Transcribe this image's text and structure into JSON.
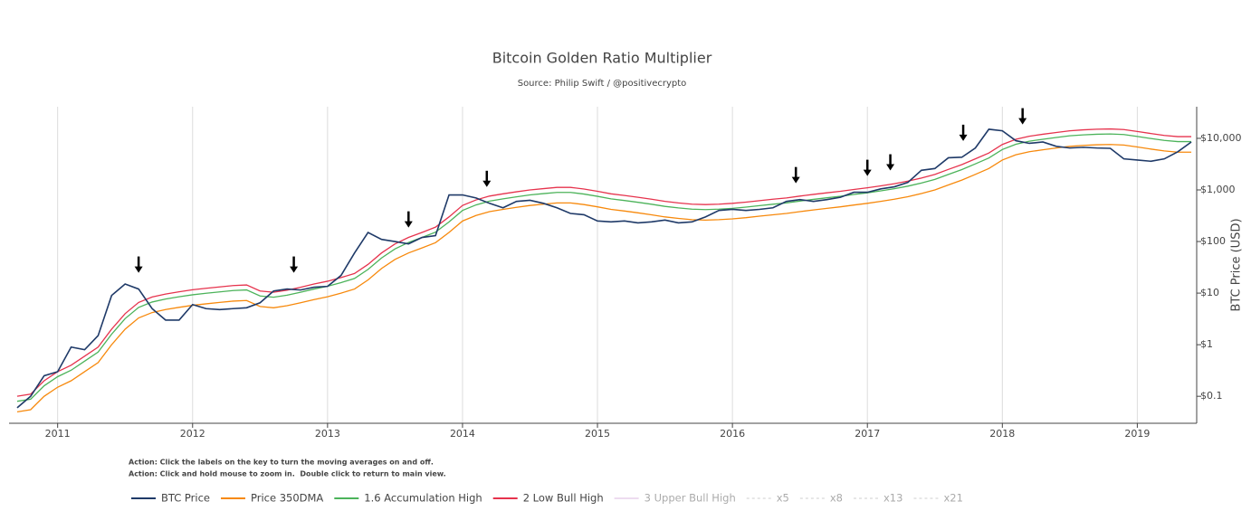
{
  "chart_data": {
    "type": "line",
    "title": "Bitcoin Golden Ratio Multiplier",
    "subtitle": "Source: Philip Swift / @positivecrypto",
    "y_label": "BTC Price (USD)",
    "log_y": true,
    "grid": true,
    "xlim": [
      2010.64,
      2019.44
    ],
    "xticks": [
      2011,
      2012,
      2013,
      2014,
      2015,
      2016,
      2017,
      2018,
      2019
    ],
    "ylim": [
      0.03,
      41000
    ],
    "yticks": [
      {
        "value": 0.1,
        "label": "$0.1"
      },
      {
        "value": 1,
        "label": "$1"
      },
      {
        "value": 10,
        "label": "$10"
      },
      {
        "value": 100,
        "label": "$100"
      },
      {
        "value": 1000,
        "label": "$1,000"
      },
      {
        "value": 10000,
        "label": "$10,000"
      }
    ],
    "x": [
      2010.7,
      2010.8,
      2010.9,
      2011.0,
      2011.1,
      2011.2,
      2011.3,
      2011.4,
      2011.5,
      2011.6,
      2011.7,
      2011.8,
      2011.9,
      2012.0,
      2012.1,
      2012.2,
      2012.3,
      2012.4,
      2012.5,
      2012.6,
      2012.7,
      2012.8,
      2012.9,
      2013.0,
      2013.1,
      2013.2,
      2013.3,
      2013.4,
      2013.5,
      2013.6,
      2013.7,
      2013.8,
      2013.9,
      2014.0,
      2014.1,
      2014.2,
      2014.3,
      2014.4,
      2014.5,
      2014.6,
      2014.7,
      2014.8,
      2014.9,
      2015.0,
      2015.1,
      2015.2,
      2015.3,
      2015.4,
      2015.5,
      2015.6,
      2015.7,
      2015.8,
      2015.9,
      2016.0,
      2016.1,
      2016.2,
      2016.3,
      2016.4,
      2016.5,
      2016.6,
      2016.7,
      2016.8,
      2016.9,
      2017.0,
      2017.1,
      2017.2,
      2017.3,
      2017.4,
      2017.5,
      2017.6,
      2017.7,
      2017.8,
      2017.9,
      2018.0,
      2018.1,
      2018.2,
      2018.3,
      2018.4,
      2018.5,
      2018.6,
      2018.7,
      2018.8,
      2018.9,
      2019.0,
      2019.1,
      2019.2,
      2019.3,
      2019.4
    ],
    "series": [
      {
        "name": "BTC Price",
        "color": "#1f3a68",
        "values": [
          0.06,
          0.1,
          0.25,
          0.3,
          0.9,
          0.8,
          1.5,
          9,
          15,
          12,
          5,
          3,
          3,
          6,
          5,
          4.8,
          5,
          5.2,
          6.5,
          11,
          12,
          11.5,
          13,
          13.5,
          22,
          60,
          150,
          110,
          100,
          90,
          120,
          130,
          800,
          800,
          700,
          550,
          450,
          600,
          630,
          550,
          450,
          350,
          330,
          250,
          240,
          250,
          230,
          240,
          260,
          230,
          240,
          300,
          400,
          420,
          400,
          420,
          450,
          600,
          650,
          600,
          650,
          720,
          900,
          900,
          1050,
          1150,
          1400,
          2400,
          2600,
          4200,
          4300,
          6500,
          15000,
          14000,
          9000,
          8000,
          8500,
          7000,
          6500,
          6700,
          6500,
          6400,
          4000,
          3800,
          3600,
          4000,
          5500,
          8500
        ]
      },
      {
        "name": "Price 350DMA",
        "color": "#f7890c",
        "values": [
          0.05,
          0.055,
          0.1,
          0.15,
          0.2,
          0.3,
          0.45,
          1.0,
          2.0,
          3.3,
          4.2,
          4.8,
          5.3,
          5.8,
          6.2,
          6.6,
          7.0,
          7.2,
          5.5,
          5.2,
          5.7,
          6.5,
          7.5,
          8.5,
          10,
          12,
          18,
          30,
          45,
          60,
          75,
          95,
          150,
          250,
          320,
          380,
          420,
          460,
          500,
          530,
          560,
          560,
          520,
          470,
          420,
          390,
          360,
          330,
          300,
          280,
          265,
          260,
          265,
          275,
          290,
          310,
          330,
          350,
          380,
          410,
          440,
          470,
          510,
          550,
          600,
          660,
          740,
          850,
          1000,
          1250,
          1550,
          2000,
          2600,
          3800,
          4800,
          5500,
          6000,
          6500,
          7000,
          7300,
          7500,
          7600,
          7400,
          6800,
          6200,
          5700,
          5400,
          5400
        ]
      },
      {
        "name": "1.6 Accumulation High",
        "color": "#4cb35a",
        "values": [
          0.08,
          0.088,
          0.16,
          0.24,
          0.32,
          0.48,
          0.72,
          1.6,
          3.2,
          5.28,
          6.72,
          7.68,
          8.48,
          9.28,
          9.92,
          10.56,
          11.2,
          11.52,
          8.8,
          8.32,
          9.12,
          10.4,
          12,
          13.6,
          16,
          19.2,
          28.8,
          48,
          72,
          96,
          120,
          152,
          240,
          400,
          512,
          608,
          672,
          736,
          800,
          848,
          896,
          896,
          832,
          752,
          672,
          624,
          576,
          528,
          480,
          448,
          424,
          416,
          424,
          440,
          464,
          496,
          528,
          560,
          608,
          656,
          704,
          752,
          816,
          880,
          960,
          1056,
          1184,
          1360,
          1600,
          2000,
          2480,
          3200,
          4160,
          6080,
          7680,
          8800,
          9600,
          10400,
          11200,
          11680,
          12000,
          12160,
          11840,
          10880,
          9920,
          9120,
          8640,
          8640
        ]
      },
      {
        "name": "2 Low Bull High",
        "color": "#e6334d",
        "values": [
          0.1,
          0.11,
          0.2,
          0.3,
          0.4,
          0.6,
          0.9,
          2,
          4,
          6.6,
          8.4,
          9.6,
          10.6,
          11.6,
          12.4,
          13.2,
          14,
          14.4,
          11,
          10.4,
          11.4,
          13,
          15,
          17,
          20,
          24,
          36,
          60,
          90,
          120,
          150,
          190,
          300,
          500,
          640,
          760,
          840,
          920,
          1000,
          1060,
          1120,
          1120,
          1040,
          940,
          840,
          780,
          720,
          660,
          600,
          560,
          530,
          520,
          530,
          550,
          580,
          620,
          660,
          700,
          760,
          820,
          880,
          940,
          1020,
          1100,
          1200,
          1320,
          1480,
          1700,
          2000,
          2500,
          3100,
          4000,
          5200,
          7600,
          9600,
          11000,
          12000,
          13000,
          14000,
          14600,
          15000,
          15200,
          14800,
          13600,
          12400,
          11400,
          10800,
          10800
        ]
      }
    ],
    "hidden_series": [
      {
        "name": "3 Upper Bull High",
        "color": "#d9b3e0",
        "dash": false
      },
      {
        "name": "x5",
        "color": "#cccccc",
        "dash": true
      },
      {
        "name": "x8",
        "color": "#cccccc",
        "dash": true
      },
      {
        "name": "x13",
        "color": "#cccccc",
        "dash": true
      },
      {
        "name": "x21",
        "color": "#cccccc",
        "dash": true
      }
    ],
    "arrows": [
      {
        "x": 2011.6,
        "y": 12
      },
      {
        "x": 2012.75,
        "y": 12
      },
      {
        "x": 2013.6,
        "y": 90
      },
      {
        "x": 2014.18,
        "y": 550
      },
      {
        "x": 2016.47,
        "y": 650
      },
      {
        "x": 2017.0,
        "y": 900
      },
      {
        "x": 2017.17,
        "y": 1150
      },
      {
        "x": 2017.71,
        "y": 4300
      },
      {
        "x": 2018.15,
        "y": 9000
      }
    ],
    "notes": [
      "Action: Click the labels on the key to turn the moving averages on and off.",
      "Action: Click and hold mouse to zoom in.  Double click to return to main view."
    ]
  }
}
